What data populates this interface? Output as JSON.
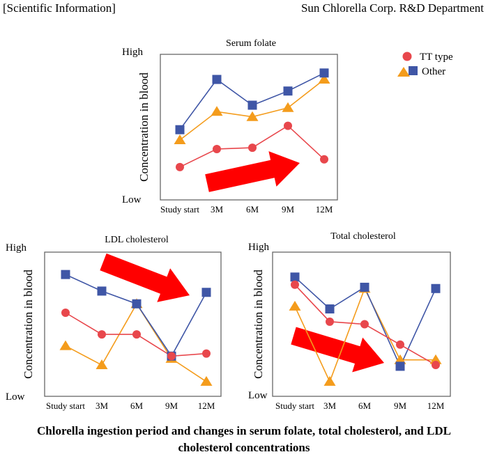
{
  "header": {
    "left": "[Scientific Information]",
    "right": "Sun Chlorella Corp. R&D Department"
  },
  "caption": {
    "line1": "Chlorella ingestion period and changes in serum folate, total cholesterol, and LDL",
    "line2": "cholesterol concentrations"
  },
  "legend": {
    "entries": [
      {
        "label": "TT type",
        "marker": "circle",
        "color": "#e8474c"
      },
      {
        "label": "Other",
        "marker": "triangle+square",
        "color": "#3f56a6",
        "color2": "#f49c1c"
      }
    ]
  },
  "chart_data": [
    {
      "type": "line",
      "title": "Serum folate",
      "ylabel": "Concentration in blood",
      "y_ticks": [
        "High",
        "Low"
      ],
      "categories": [
        "Study start",
        "3M",
        "6M",
        "9M",
        "12M"
      ],
      "ylim": [
        0,
        100
      ],
      "series": [
        {
          "name": "TT type",
          "marker": "circle",
          "color": "#e8474c",
          "values": [
            19,
            33,
            34,
            51,
            25
          ]
        },
        {
          "name": "Other",
          "marker": "triangle",
          "color": "#f49c1c",
          "values": [
            40,
            62,
            58,
            65,
            87
          ]
        },
        {
          "name": "Other",
          "marker": "square",
          "color": "#3f56a6",
          "values": [
            48,
            87,
            67,
            78,
            92
          ]
        }
      ],
      "trend_arrow": "up"
    },
    {
      "type": "line",
      "title": "LDL cholesterol",
      "ylabel": "Concentration in blood",
      "y_ticks": [
        "High",
        "Low"
      ],
      "categories": [
        "Study start",
        "3M",
        "6M",
        "9M",
        "12M"
      ],
      "ylim": [
        0,
        100
      ],
      "series": [
        {
          "name": "TT type",
          "marker": "circle",
          "color": "#e8474c",
          "values": [
            59,
            42,
            42,
            25,
            27
          ]
        },
        {
          "name": "Other",
          "marker": "triangle",
          "color": "#f49c1c",
          "values": [
            33,
            18,
            66,
            23,
            5
          ]
        },
        {
          "name": "Other",
          "marker": "square",
          "color": "#3f56a6",
          "values": [
            89,
            76,
            66,
            25,
            75
          ]
        }
      ],
      "trend_arrow": "down"
    },
    {
      "type": "line",
      "title": "Total cholesterol",
      "ylabel": "Concentration in blood",
      "y_ticks": [
        "High",
        "Low"
      ],
      "categories": [
        "Study start",
        "3M",
        "6M",
        "9M",
        "12M"
      ],
      "ylim": [
        0,
        100
      ],
      "series": [
        {
          "name": "TT type",
          "marker": "circle",
          "color": "#e8474c",
          "values": [
            81,
            52,
            50,
            34,
            18
          ]
        },
        {
          "name": "Other",
          "marker": "triangle",
          "color": "#f49c1c",
          "values": [
            64,
            5,
            78,
            22,
            22
          ]
        },
        {
          "name": "Other",
          "marker": "square",
          "color": "#3f56a6",
          "values": [
            87,
            62,
            79,
            17,
            78
          ]
        }
      ],
      "trend_arrow": "down"
    }
  ]
}
